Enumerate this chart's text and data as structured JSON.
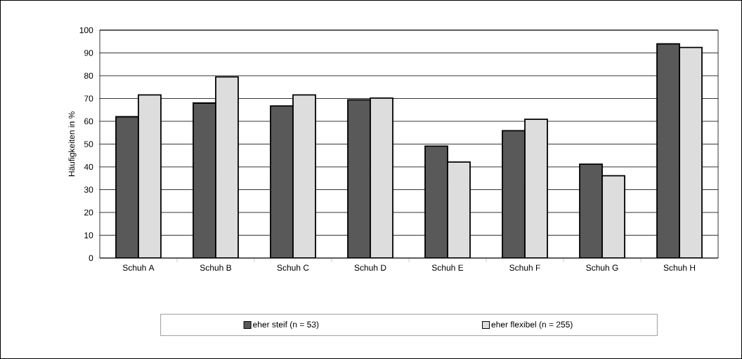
{
  "chart_data": {
    "type": "bar",
    "ylabel": "Häufigkeiten in %",
    "categories": [
      "Schuh A",
      "Schuh B",
      "Schuh C",
      "Schuh D",
      "Schuh E",
      "Schuh F",
      "Schuh G",
      "Schuh H"
    ],
    "series": [
      {
        "name": "eher steif (n = 53)",
        "color": "#595959",
        "values": [
          62,
          68,
          66.7,
          69.4,
          49.1,
          55.9,
          41.2,
          94
        ]
      },
      {
        "name": "eher flexibel (n = 255)",
        "color": "#dddddd",
        "values": [
          71.6,
          79.5,
          71.6,
          70.2,
          42.1,
          60.9,
          36.1,
          92.4
        ]
      }
    ],
    "ylim": [
      0,
      100
    ],
    "yticks": [
      0,
      10,
      20,
      30,
      40,
      50,
      60,
      70,
      80,
      90,
      100
    ],
    "grid": "y",
    "legend": "bottom"
  }
}
